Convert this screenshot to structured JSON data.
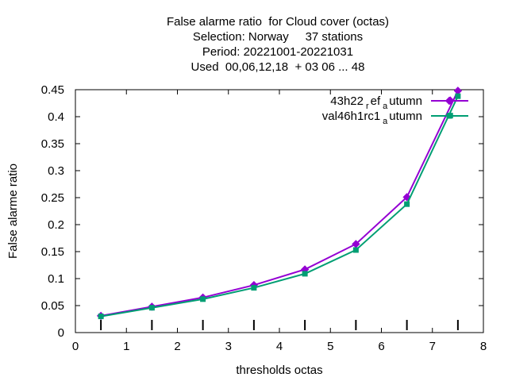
{
  "chart_data": {
    "type": "line",
    "title_lines": [
      "False alarme ratio  for Cloud cover (octas)",
      "Selection: Norway     37 stations",
      "Period: 20221001-20221031",
      "Used  00,06,12,18  + 03 06 ... 48"
    ],
    "xlabel": "thresholds octas",
    "ylabel": "False alarme ratio",
    "xlim": [
      0,
      8
    ],
    "ylim": [
      0,
      0.45
    ],
    "xticks": [
      "0",
      "1",
      "2",
      "3",
      "4",
      "5",
      "6",
      "7",
      "8"
    ],
    "yticks": [
      "0",
      "0.05",
      "0.1",
      "0.15",
      "0.2",
      "0.25",
      "0.3",
      "0.35",
      "0.4",
      "0.45"
    ],
    "x": [
      0.5,
      1.5,
      2.5,
      3.5,
      4.5,
      5.5,
      6.5,
      7.5
    ],
    "series": [
      {
        "name_main": "43h22",
        "name_sub1": "r",
        "name_mid": "ef",
        "name_sub2": "a",
        "name_end": "utumn",
        "color": "#9400d3",
        "marker": "diamond",
        "values": [
          0.031,
          0.048,
          0.065,
          0.088,
          0.117,
          0.164,
          0.251,
          0.448
        ],
        "legend_marker_value": 0.43
      },
      {
        "name_main": "val46h1rc1",
        "name_sub1": "a",
        "name_mid": "",
        "name_sub2": "",
        "name_end": "utumn",
        "color": "#009e73",
        "marker": "square",
        "values": [
          0.03,
          0.046,
          0.062,
          0.083,
          0.109,
          0.153,
          0.238,
          0.438
        ],
        "legend_marker_value": 0.402
      }
    ],
    "legend_position": "top-right",
    "grid": false
  }
}
